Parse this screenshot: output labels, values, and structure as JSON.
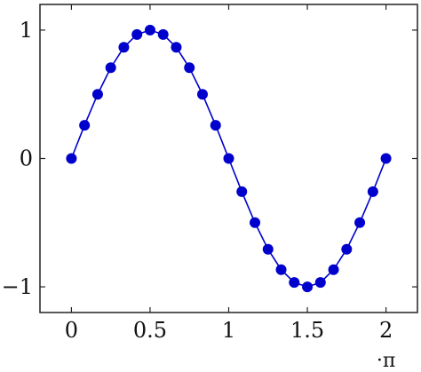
{
  "chart_data": {
    "type": "line",
    "x_unit_label": "·π",
    "x_ticks": [
      0,
      0.5,
      1,
      1.5,
      2
    ],
    "x_tick_labels": [
      "0",
      "0.5",
      "1",
      "1.5",
      "2"
    ],
    "y_ticks": [
      -1,
      0,
      1
    ],
    "y_tick_labels": [
      "−1",
      "0",
      "1"
    ],
    "xlim": [
      -0.2,
      2.2
    ],
    "ylim": [
      -1.2,
      1.2
    ],
    "grid": false,
    "series": [
      {
        "color": "#0000cc",
        "marker": "circle",
        "x": [
          0,
          0.0833,
          0.1667,
          0.25,
          0.3333,
          0.4167,
          0.5,
          0.5833,
          0.6667,
          0.75,
          0.8333,
          0.9167,
          1,
          1.0833,
          1.1667,
          1.25,
          1.3333,
          1.4167,
          1.5,
          1.5833,
          1.6667,
          1.75,
          1.8333,
          1.9167,
          2
        ],
        "y": [
          0,
          0.2588,
          0.5,
          0.7071,
          0.866,
          0.9659,
          1,
          0.9659,
          0.866,
          0.7071,
          0.5,
          0.2588,
          0,
          -0.2588,
          -0.5,
          -0.7071,
          -0.866,
          -0.9659,
          -1,
          -0.9659,
          -0.866,
          -0.7071,
          -0.5,
          -0.2588,
          0
        ]
      }
    ]
  }
}
